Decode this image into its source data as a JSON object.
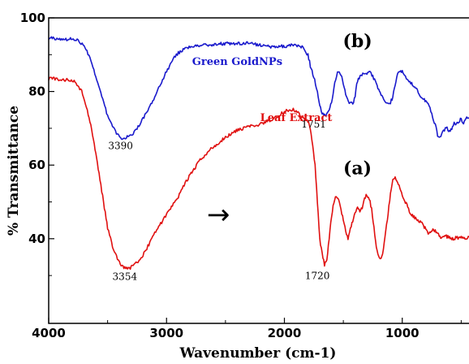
{
  "chart_data": {
    "type": "line",
    "xlabel": "Wavenumber (cm-1)",
    "ylabel": "% Transmittance",
    "xlim": [
      4000,
      420
    ],
    "ylim": [
      17,
      100
    ],
    "x_ticks": [
      4000,
      3000,
      2000,
      1000
    ],
    "x_tick_labels": [
      "4000",
      "3000",
      "2000",
      "1000"
    ],
    "y_ticks": [
      40,
      60,
      80,
      100
    ],
    "y_tick_labels": [
      "40",
      "60",
      "80",
      "100"
    ],
    "grid": false,
    "legend": "none",
    "series": [
      {
        "key": "b",
        "name": "Green GoldNPs",
        "color": "#1a1acc",
        "x": [
          4000,
          3900,
          3800,
          3750,
          3700,
          3650,
          3600,
          3550,
          3500,
          3450,
          3400,
          3390,
          3350,
          3300,
          3250,
          3200,
          3150,
          3100,
          3050,
          3000,
          2950,
          2900,
          2850,
          2800,
          2700,
          2600,
          2500,
          2400,
          2300,
          2200,
          2100,
          2000,
          1950,
          1900,
          1850,
          1800,
          1780,
          1751,
          1720,
          1700,
          1680,
          1660,
          1640,
          1620,
          1600,
          1580,
          1550,
          1520,
          1500,
          1480,
          1450,
          1420,
          1400,
          1380,
          1350,
          1320,
          1300,
          1280,
          1250,
          1220,
          1200,
          1180,
          1150,
          1120,
          1100,
          1080,
          1060,
          1040,
          1020,
          1000,
          980,
          950,
          920,
          900,
          880,
          850,
          820,
          800,
          780,
          750,
          720,
          700,
          680,
          650,
          620,
          600,
          580,
          560,
          540,
          520,
          500,
          480,
          460,
          440,
          420
        ],
        "y": [
          94.5,
          94.3,
          94.2,
          93.8,
          92.5,
          89,
          84,
          78.5,
          73.5,
          70,
          67.5,
          67.2,
          67.3,
          68,
          70,
          72.5,
          75.5,
          78.5,
          82,
          85.5,
          88.5,
          90.5,
          91.5,
          92,
          92.5,
          92.8,
          93,
          93,
          93.2,
          92.5,
          92,
          92.3,
          92.5,
          92.6,
          92,
          90,
          87,
          84,
          80,
          76.5,
          74,
          73.5,
          73.8,
          75,
          77,
          81,
          85.5,
          84.5,
          82,
          79.5,
          77,
          76.5,
          79,
          83,
          84.5,
          85,
          84.5,
          85.5,
          84,
          82,
          80.5,
          79,
          77.5,
          76.8,
          77,
          78.5,
          82,
          85,
          85.8,
          85.5,
          84.5,
          83,
          82,
          81.5,
          80.5,
          79,
          78,
          77.5,
          76.5,
          74,
          71,
          68,
          67.5,
          69.5,
          70,
          69,
          70,
          71.5,
          71,
          72,
          72.5,
          71.5,
          72.5,
          73,
          72.5
        ]
      },
      {
        "key": "a",
        "name": "Leaf Extract",
        "color": "#e01010",
        "x": [
          4000,
          3900,
          3800,
          3760,
          3720,
          3680,
          3650,
          3620,
          3600,
          3580,
          3550,
          3520,
          3500,
          3450,
          3400,
          3354,
          3300,
          3250,
          3200,
          3150,
          3100,
          3050,
          3000,
          2950,
          2900,
          2850,
          2800,
          2700,
          2600,
          2500,
          2400,
          2300,
          2200,
          2100,
          2000,
          1950,
          1900,
          1850,
          1800,
          1780,
          1760,
          1740,
          1720,
          1700,
          1680,
          1660,
          1640,
          1620,
          1600,
          1580,
          1560,
          1540,
          1520,
          1500,
          1480,
          1460,
          1440,
          1420,
          1400,
          1380,
          1360,
          1340,
          1320,
          1300,
          1280,
          1260,
          1240,
          1220,
          1200,
          1180,
          1160,
          1140,
          1120,
          1100,
          1080,
          1060,
          1040,
          1020,
          1000,
          980,
          960,
          940,
          920,
          900,
          880,
          860,
          840,
          820,
          800,
          780,
          760,
          740,
          720,
          700,
          680,
          660,
          640,
          620,
          600,
          580,
          560,
          540,
          520,
          500,
          480,
          460,
          440,
          420
        ],
        "y": [
          83.5,
          83.3,
          83,
          82,
          80,
          76,
          72,
          67,
          63,
          59,
          53,
          47,
          43,
          37,
          33.5,
          32,
          32.2,
          33.5,
          35.5,
          38.5,
          41.5,
          44,
          46.5,
          49,
          51.5,
          54.5,
          57.5,
          62,
          65,
          67.5,
          69.5,
          70.5,
          71.2,
          72.5,
          74.5,
          75.2,
          74.8,
          73,
          72,
          70,
          65,
          60,
          50,
          40,
          36,
          33,
          34,
          40,
          46,
          50,
          51.5,
          51,
          48,
          45,
          42,
          40,
          42.5,
          45,
          47,
          48.5,
          47.5,
          48.5,
          51,
          52,
          51,
          48,
          43,
          38,
          35,
          34.5,
          37,
          42,
          47,
          52,
          56,
          56.5,
          55.5,
          54,
          52,
          50.5,
          49,
          47.5,
          46.5,
          46,
          45.5,
          45,
          44.5,
          43.5,
          42.5,
          41.5,
          42,
          42.5,
          42,
          41.5,
          40.5,
          40.5,
          41,
          40.5,
          40.5,
          40,
          40,
          40.5,
          40,
          40.5,
          40,
          40.2,
          40.5,
          40.4
        ]
      }
    ],
    "peak_labels": [
      {
        "text": "3390",
        "x": 3390,
        "y": 64.3
      },
      {
        "text": "1751",
        "x": 1751,
        "y": 70.2
      },
      {
        "text": "3354",
        "x": 3354,
        "y": 28.8
      },
      {
        "text": "1720",
        "x": 1720,
        "y": 29.0
      }
    ],
    "series_labels": [
      {
        "text": "Green GoldNPs",
        "x": 2400,
        "y": 87.2,
        "key": "b"
      },
      {
        "text": "Leaf Extract",
        "x": 1900,
        "y": 72.0,
        "key": "a"
      }
    ],
    "panel_labels": [
      {
        "text": "(b)",
        "x": 1380,
        "y": 92.0
      },
      {
        "text": "(a)",
        "x": 1380,
        "y": 57.5
      }
    ],
    "arrow": {
      "symbol": "→",
      "x": 2560,
      "y": 44.0
    }
  }
}
